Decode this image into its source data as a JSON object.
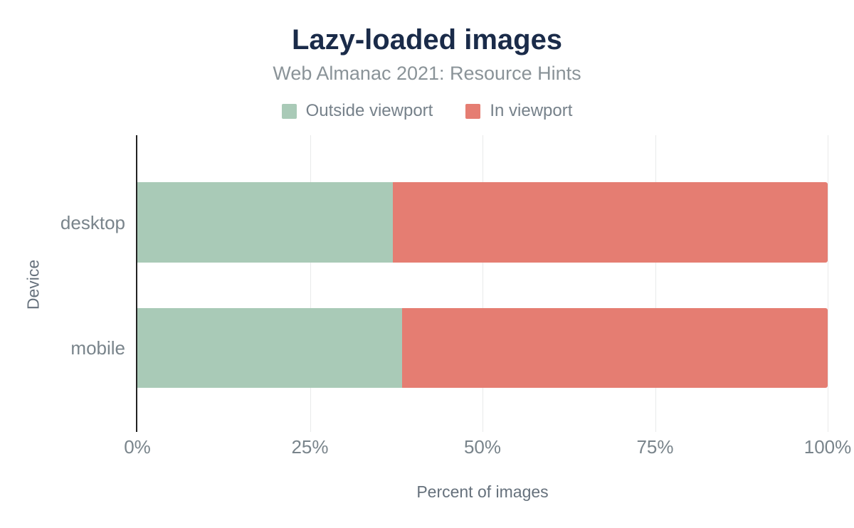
{
  "header": {
    "title": "Lazy-loaded images",
    "subtitle": "Web Almanac 2021: Resource Hints"
  },
  "colors": {
    "title": "#1a2b49",
    "outside_viewport": "#a9cab7",
    "in_viewport": "#e57d72",
    "axis_line": "#222222",
    "gridline": "#e9eaea",
    "tick_text": "#79848b",
    "axis_title_text": "#66717c"
  },
  "chart_data": {
    "type": "bar",
    "orientation": "horizontal",
    "stacked": true,
    "title": "Lazy-loaded images",
    "subtitle": "Web Almanac 2021: Resource Hints",
    "categories": [
      "desktop",
      "mobile"
    ],
    "series": [
      {
        "name": "Outside viewport",
        "color": "#a9cab7",
        "values": [
          37.0,
          38.4
        ]
      },
      {
        "name": "In viewport",
        "color": "#e57d72",
        "values": [
          63.0,
          61.6
        ]
      }
    ],
    "xlabel": "Percent of images",
    "ylabel": "Device",
    "xlim": [
      0,
      100
    ],
    "xticks": [
      {
        "value": 0,
        "label": "0%"
      },
      {
        "value": 25,
        "label": "25%"
      },
      {
        "value": 50,
        "label": "50%"
      },
      {
        "value": 75,
        "label": "75%"
      },
      {
        "value": 100,
        "label": "100%"
      }
    ],
    "legend_position": "top",
    "grid": "vertical"
  }
}
